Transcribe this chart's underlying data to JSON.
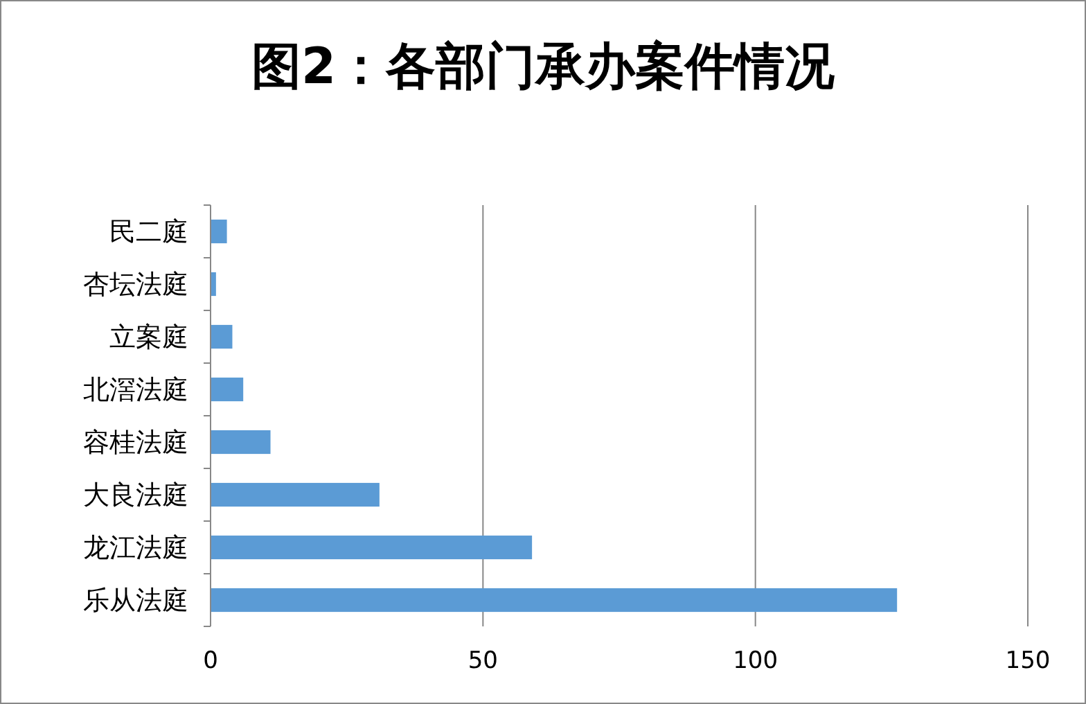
{
  "chart_data": {
    "type": "bar",
    "orientation": "horizontal",
    "title": "图2：各部门承办案件情况",
    "categories": [
      "民二庭",
      "杏坛法庭",
      "立案庭",
      "北滘法庭",
      "容桂法庭",
      "大良法庭",
      "龙江法庭",
      "乐从法庭"
    ],
    "values": [
      3,
      1,
      4,
      6,
      11,
      31,
      59,
      126
    ],
    "color": "#5b9bd5",
    "xlim": [
      0,
      150
    ],
    "xticks": [
      0,
      50,
      100,
      150
    ],
    "grid": "x"
  }
}
